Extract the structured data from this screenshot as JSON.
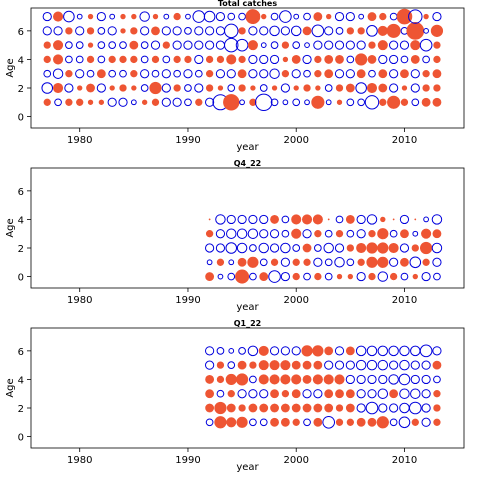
{
  "figure": {
    "colors": {
      "positive": "#ee5533",
      "negative": "#0000dd",
      "axis": "#000000"
    }
  },
  "chart_data": [
    {
      "type": "scatter",
      "subtype": "bubble-residuals",
      "title": "Total catches",
      "xlabel": "year",
      "ylabel": "Age",
      "xlim": [
        1975.5,
        2015.5
      ],
      "ylim": [
        -0.8,
        7.6
      ],
      "xticks": [
        1980,
        1990,
        2000,
        2010
      ],
      "yticks": [
        0,
        2,
        4,
        6
      ],
      "ages": [
        1,
        2,
        3,
        4,
        5,
        6,
        7
      ],
      "years": [
        1977,
        1978,
        1979,
        1980,
        1981,
        1982,
        1983,
        1984,
        1985,
        1986,
        1987,
        1988,
        1989,
        1990,
        1991,
        1992,
        1993,
        1994,
        1995,
        1996,
        1997,
        1998,
        1999,
        2000,
        2001,
        2002,
        2003,
        2004,
        2005,
        2006,
        2007,
        2008,
        2009,
        2010,
        2011,
        2012,
        2013
      ],
      "residuals": [
        [
          0.2,
          -0.2,
          0.2,
          0.2,
          0.1,
          0.1,
          -0.3,
          -0.3,
          -0.1,
          0.1,
          0.2,
          -0.3,
          -0.3,
          -0.2,
          0.2,
          -0.3,
          -1.0,
          1.1,
          -0.1,
          0.2,
          -1.2,
          -0.2,
          -0.1,
          -0.2,
          -0.1,
          0.7,
          -0.1,
          0.1,
          -0.2,
          -0.2,
          -0.8,
          0.2,
          0.7,
          0.2,
          -0.2,
          0.3,
          0.3
        ],
        [
          -0.5,
          0.4,
          -0.3,
          0.1,
          0.3,
          -0.3,
          0.1,
          0.2,
          0.1,
          -0.2,
          0.6,
          -0.3,
          0.2,
          -0.2,
          -0.3,
          0.2,
          0.1,
          -0.2,
          0.2,
          0.1,
          -0.2,
          0.1,
          -0.3,
          0.1,
          0.2,
          0.1,
          -0.2,
          0.2,
          0.3,
          -0.5,
          0.4,
          0.3,
          -0.3,
          0.1,
          -0.3,
          0.2,
          0.2
        ],
        [
          -0.2,
          -0.4,
          0.2,
          -0.3,
          -0.2,
          0.3,
          -0.2,
          -0.2,
          0.2,
          -0.3,
          -0.2,
          -0.3,
          -0.2,
          -0.3,
          -0.2,
          0.2,
          -0.3,
          -0.3,
          0.3,
          -0.3,
          -0.3,
          -0.4,
          0.2,
          -0.3,
          -0.2,
          0.2,
          0.3,
          -0.3,
          -0.3,
          0.3,
          -0.2,
          0.3,
          -0.3,
          0.3,
          -0.3,
          0.2,
          0.3
        ],
        [
          0.2,
          0.4,
          -0.2,
          -0.2,
          0.2,
          -0.2,
          0.2,
          0.2,
          0.2,
          -0.2,
          0.2,
          -0.2,
          0.2,
          0.2,
          -0.3,
          0.2,
          0.2,
          0.4,
          0.2,
          -0.3,
          -0.3,
          -0.3,
          0.1,
          0.3,
          -0.3,
          0.2,
          0.3,
          0.3,
          -0.2,
          0.6,
          0.3,
          -0.3,
          -0.3,
          -0.2,
          0.3,
          -0.2,
          0.2
        ],
        [
          0.2,
          0.4,
          -0.2,
          -0.2,
          0.1,
          -0.2,
          -0.2,
          -0.2,
          0.3,
          -0.2,
          -0.3,
          0.2,
          -0.3,
          -0.3,
          -0.3,
          -0.3,
          -0.3,
          -0.8,
          -0.6,
          0.4,
          -0.1,
          -0.2,
          0.2,
          -0.2,
          -0.1,
          -0.3,
          -0.3,
          -0.3,
          -0.3,
          -0.3,
          0.2,
          0.4,
          -0.3,
          -0.3,
          0.4,
          -0.6,
          0.2
        ],
        [
          -0.3,
          -0.3,
          0.2,
          -0.3,
          0.2,
          -0.2,
          -0.3,
          0.1,
          0.2,
          -0.3,
          0.3,
          -0.3,
          -0.3,
          -0.2,
          -0.3,
          -0.3,
          -0.3,
          -0.8,
          0.2,
          -0.3,
          -0.3,
          -0.4,
          -0.3,
          -0.4,
          0.3,
          -0.6,
          -0.3,
          -0.2,
          0.2,
          0.2,
          -0.5,
          0.4,
          0.8,
          -0.2,
          1.3,
          -0.1,
          0.6
        ],
        [
          -0.3,
          0.4,
          -0.5,
          -0.1,
          0.1,
          -0.3,
          -0.1,
          0.1,
          0.1,
          -0.4,
          0.1,
          -0.1,
          0.2,
          -0.1,
          -0.6,
          -0.5,
          -0.3,
          -0.2,
          -0.2,
          0.9,
          0.1,
          -0.2,
          -0.6,
          -0.1,
          -0.2,
          0.3,
          0.1,
          -0.3,
          -0.3,
          -0.1,
          0.3,
          0.2,
          -0.2,
          1.0,
          -0.8,
          0.1,
          -0.3
        ]
      ]
    },
    {
      "type": "scatter",
      "subtype": "bubble-residuals",
      "title": "Q4_22",
      "xlabel": "year",
      "ylabel": "Age",
      "xlim": [
        1975.5,
        2015.5
      ],
      "ylim": [
        -0.8,
        7.6
      ],
      "xticks": [
        1980,
        1990,
        2000,
        2010
      ],
      "yticks": [
        0,
        2,
        4,
        6
      ],
      "ages": [
        0,
        1,
        2,
        3,
        4
      ],
      "years": [
        1992,
        1993,
        1994,
        1995,
        1996,
        1997,
        1998,
        1999,
        2000,
        2001,
        2002,
        2003,
        2004,
        2005,
        2006,
        2007,
        2008,
        2009,
        2010,
        2011,
        2012,
        2013
      ],
      "residuals": [
        [
          0.3,
          -0.1,
          -0.2,
          0.8,
          -0.2,
          0.3,
          -0.6,
          -0.3,
          0.2,
          -0.2,
          0.2,
          -0.2,
          0.1,
          0.1,
          -0.3,
          0.2,
          -0.4,
          0.2,
          -0.2,
          0.1,
          -0.3,
          -0.2
        ],
        [
          -0.1,
          0.2,
          -0.1,
          0.3,
          0.5,
          -0.2,
          0.2,
          -0.3,
          0.2,
          0.2,
          -0.3,
          -0.2,
          -0.4,
          -0.2,
          0.2,
          0.5,
          0.5,
          -0.3,
          0.3,
          -0.5,
          0.2,
          -0.3
        ],
        [
          -0.3,
          -0.3,
          -0.5,
          -0.4,
          -0.2,
          -0.4,
          -0.3,
          -0.4,
          -0.2,
          0.3,
          -0.2,
          -0.4,
          -0.3,
          0.2,
          0.4,
          0.5,
          0.5,
          0.4,
          -0.3,
          0.2,
          0.6,
          -0.4
        ],
        [
          0.2,
          -0.3,
          -0.4,
          -0.4,
          -0.4,
          -0.3,
          -0.3,
          -0.2,
          0.4,
          -0.3,
          0.2,
          -0.2,
          0.2,
          -0.2,
          -0.3,
          0.2,
          0.5,
          -0.2,
          0.3,
          -0.1,
          0.4,
          0.3
        ],
        [
          0.0,
          -0.4,
          -0.3,
          -0.3,
          -0.3,
          -0.3,
          0.3,
          -0.2,
          0.4,
          0.4,
          0.4,
          0.0,
          -0.2,
          0.3,
          -0.3,
          -0.4,
          0.1,
          0.0,
          -0.3,
          0.0,
          -0.1,
          -0.4
        ]
      ]
    },
    {
      "type": "scatter",
      "subtype": "bubble-residuals",
      "title": "Q1_22",
      "xlabel": "year",
      "ylabel": "Age",
      "xlim": [
        1975.5,
        2015.5
      ],
      "ylim": [
        -0.8,
        7.6
      ],
      "xticks": [
        1980,
        1990,
        2000,
        2010
      ],
      "yticks": [
        0,
        2,
        4,
        6
      ],
      "ages": [
        1,
        2,
        3,
        4,
        5,
        6
      ],
      "years": [
        1992,
        1993,
        1994,
        1995,
        1996,
        1997,
        1998,
        1999,
        2000,
        2001,
        2002,
        2003,
        2004,
        2005,
        2006,
        2007,
        2008,
        2009,
        2010,
        2011,
        2012,
        2013
      ],
      "residuals": [
        [
          -0.2,
          0.6,
          0.4,
          0.5,
          -0.2,
          -0.2,
          0.3,
          0.3,
          0.2,
          -0.2,
          0.3,
          -0.6,
          0.2,
          0.2,
          0.3,
          0.3,
          0.6,
          -0.2,
          -0.5,
          0.2,
          -0.3,
          0.2
        ],
        [
          0.3,
          0.6,
          0.3,
          0.2,
          0.3,
          0.3,
          0.3,
          0.3,
          0.3,
          0.3,
          0.3,
          0.3,
          0.2,
          0.3,
          -0.3,
          -0.6,
          -0.3,
          -0.3,
          -0.4,
          -0.6,
          -0.3,
          0.2
        ],
        [
          0.3,
          -0.2,
          0.2,
          -0.3,
          -0.3,
          -0.3,
          0.3,
          0.2,
          0.3,
          -0.3,
          -0.3,
          0.3,
          0.3,
          0.3,
          -0.3,
          -0.3,
          -0.4,
          0.3,
          -0.4,
          -0.4,
          -0.3,
          0.2
        ],
        [
          0.3,
          0.2,
          0.5,
          0.6,
          -0.2,
          0.4,
          0.4,
          0.4,
          0.4,
          0.3,
          0.4,
          0.4,
          0.4,
          -0.3,
          -0.3,
          -0.3,
          -0.3,
          -0.4,
          -0.5,
          -0.3,
          -0.3,
          -0.2
        ],
        [
          -0.3,
          0.2,
          -0.2,
          0.3,
          0.2,
          0.4,
          0.4,
          0.4,
          0.3,
          0.3,
          0.3,
          -0.3,
          -0.3,
          -0.3,
          -0.4,
          -0.4,
          -0.4,
          -0.3,
          -0.4,
          -0.3,
          -0.3,
          0.3
        ],
        [
          -0.3,
          -0.2,
          -0.1,
          -0.2,
          -0.4,
          0.4,
          -0.3,
          -0.3,
          -0.3,
          0.5,
          0.5,
          0.3,
          -0.3,
          0.3,
          -0.4,
          -0.4,
          -0.4,
          -0.4,
          -0.4,
          -0.4,
          -0.6,
          -0.3
        ]
      ]
    }
  ]
}
